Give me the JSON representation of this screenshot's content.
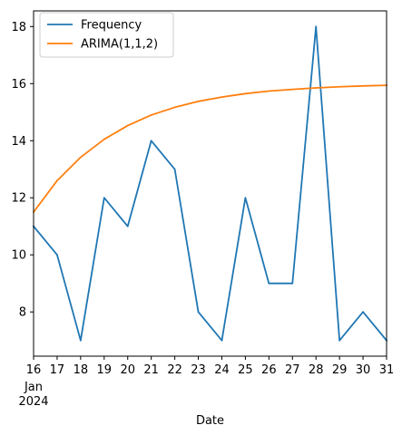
{
  "chart_data": {
    "type": "line",
    "xlabel": "Date",
    "x_tick_labels": [
      "16",
      "17",
      "18",
      "19",
      "20",
      "21",
      "22",
      "23",
      "24",
      "25",
      "26",
      "27",
      "28",
      "29",
      "30",
      "31"
    ],
    "x_secondary_label": [
      "Jan",
      "2024"
    ],
    "x": [
      "2024-01-16",
      "2024-01-17",
      "2024-01-18",
      "2024-01-19",
      "2024-01-20",
      "2024-01-21",
      "2024-01-22",
      "2024-01-23",
      "2024-01-24",
      "2024-01-25",
      "2024-01-26",
      "2024-01-27",
      "2024-01-28",
      "2024-01-29",
      "2024-01-30",
      "2024-01-31"
    ],
    "y_ticks": [
      8,
      10,
      12,
      14,
      16,
      18
    ],
    "xlim": [
      "2024-01-16",
      "2024-01-31"
    ],
    "ylim": [
      6.45,
      18.55
    ],
    "grid": false,
    "legend_position": "top-left",
    "series": [
      {
        "name": "Frequency",
        "color": "#1f77b4",
        "values": [
          11,
          10,
          7,
          12,
          11,
          14,
          13,
          8,
          7,
          12,
          9,
          9,
          18,
          7,
          8,
          7
        ]
      },
      {
        "name": "ARIMA(1,1,2)",
        "color": "#ff7f0e",
        "values": [
          11.5,
          12.6,
          13.42,
          14.05,
          14.53,
          14.9,
          15.17,
          15.38,
          15.53,
          15.65,
          15.74,
          15.8,
          15.85,
          15.89,
          15.92,
          15.94
        ]
      }
    ]
  }
}
